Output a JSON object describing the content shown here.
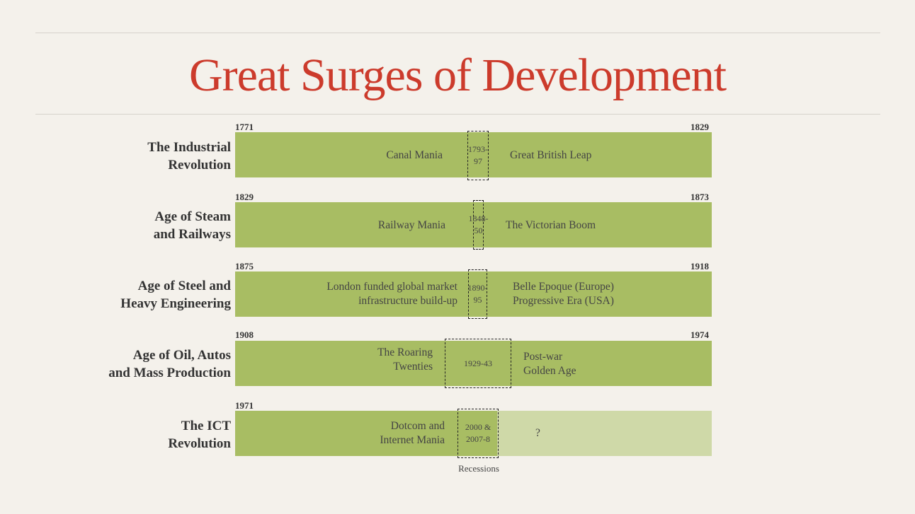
{
  "title": "Great Surges of Development",
  "recessions_caption": "Recessions",
  "colors": {
    "title": "#cc3b2c",
    "bar": "#a8bd63",
    "bar_future": "#cfd9a8"
  },
  "surges": [
    {
      "label_line1": "The Industrial",
      "label_line2": "Revolution",
      "start_year": "1771",
      "end_year": "1829",
      "left_text_line1": "Canal Mania",
      "left_text_line2": "",
      "recession_line1": "1793-",
      "recession_line2": "97",
      "right_text_line1": "Great British Leap",
      "right_text_line2": ""
    },
    {
      "label_line1": "Age of Steam",
      "label_line2": "and Railways",
      "start_year": "1829",
      "end_year": "1873",
      "left_text_line1": "Railway Mania",
      "left_text_line2": "",
      "recession_line1": "1848-",
      "recession_line2": "50",
      "right_text_line1": "The Victorian Boom",
      "right_text_line2": ""
    },
    {
      "label_line1": "Age of Steel and",
      "label_line2": "Heavy Engineering",
      "start_year": "1875",
      "end_year": "1918",
      "left_text_line1": "London funded global market",
      "left_text_line2": "infrastructure build-up",
      "recession_line1": "1890-",
      "recession_line2": "95",
      "right_text_line1": "Belle Epoque (Europe)",
      "right_text_line2": "Progressive Era (USA)"
    },
    {
      "label_line1": "Age of Oil, Autos",
      "label_line2": "and Mass Production",
      "start_year": "1908",
      "end_year": "1974",
      "left_text_line1": "The Roaring",
      "left_text_line2": "Twenties",
      "recession_line1": "1929-43",
      "recession_line2": "",
      "right_text_line1": "Post-war",
      "right_text_line2": "Golden Age"
    },
    {
      "label_line1": "The ICT",
      "label_line2": "Revolution",
      "start_year": "1971",
      "end_year": "",
      "left_text_line1": "Dotcom and",
      "left_text_line2": "Internet Mania",
      "recession_line1": "2000 &",
      "recession_line2": "2007-8",
      "right_text_line1": "?",
      "right_text_line2": ""
    }
  ]
}
